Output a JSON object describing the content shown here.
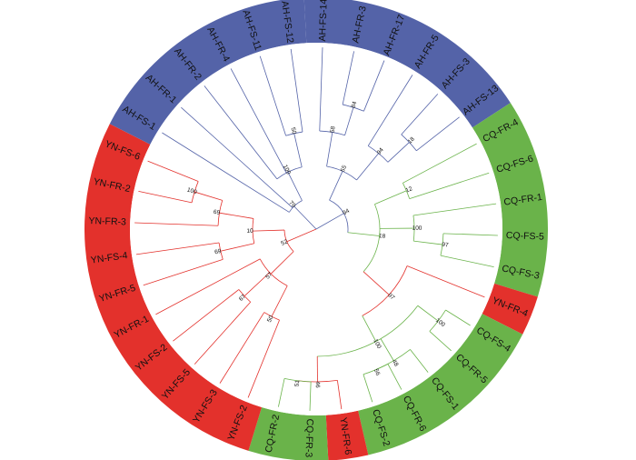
{
  "groups": [
    {
      "name": "AH",
      "color": "#5463a8"
    },
    {
      "name": "CQ",
      "color": "#6ab34a"
    },
    {
      "name": "YN",
      "color": "#e3312c"
    }
  ],
  "leaves": [
    {
      "label": "AH-FS-14",
      "group": "AH"
    },
    {
      "label": "AH-FR-3",
      "group": "AH"
    },
    {
      "label": "AH-FR-17",
      "group": "AH"
    },
    {
      "label": "AH-FR-5",
      "group": "AH"
    },
    {
      "label": "AH-FS-3",
      "group": "AH"
    },
    {
      "label": "AH-FS-13",
      "group": "AH"
    },
    {
      "label": "CQ-FR-4",
      "group": "CQ"
    },
    {
      "label": "CQ-FS-6",
      "group": "CQ"
    },
    {
      "label": "CQ-FR-1",
      "group": "CQ"
    },
    {
      "label": "CQ-FS-5",
      "group": "CQ"
    },
    {
      "label": "CQ-FS-3",
      "group": "CQ"
    },
    {
      "label": "YN-FR-4",
      "group": "YN"
    },
    {
      "label": "CQ-FS-4",
      "group": "CQ"
    },
    {
      "label": "CQ-FR-5",
      "group": "CQ"
    },
    {
      "label": "CQ-FS-1",
      "group": "CQ"
    },
    {
      "label": "CQ-FR-6",
      "group": "CQ"
    },
    {
      "label": "CQ-FS-2",
      "group": "CQ"
    },
    {
      "label": "YN-FR-6",
      "group": "YN"
    },
    {
      "label": "CQ-FR-3",
      "group": "CQ"
    },
    {
      "label": "CQ-FR-2",
      "group": "CQ"
    },
    {
      "label": "YN-FS-2",
      "group": "YN"
    },
    {
      "label": "YN-FS-3",
      "group": "YN"
    },
    {
      "label": "YN-FS-5",
      "group": "YN"
    },
    {
      "label": "YN-FS-2",
      "group": "YN"
    },
    {
      "label": "YN-FR-1",
      "group": "YN"
    },
    {
      "label": "YN-FR-5",
      "group": "YN"
    },
    {
      "label": "YN-FS-4",
      "group": "YN"
    },
    {
      "label": "YN-FR-3",
      "group": "YN"
    },
    {
      "label": "YN-FR-2",
      "group": "YN"
    },
    {
      "label": "YN-FS-6",
      "group": "YN"
    },
    {
      "label": "AH-FS-1",
      "group": "AH"
    },
    {
      "label": "AH-FR-1",
      "group": "AH"
    },
    {
      "label": "AH-FR-2",
      "group": "AH"
    },
    {
      "label": "AH-FR-4",
      "group": "AH"
    },
    {
      "label": "AH-FS-11",
      "group": "AH"
    },
    {
      "label": "AH-FS-12",
      "group": "AH"
    }
  ],
  "bootstrap_values": [
    "94",
    "55",
    "58",
    "84",
    "94",
    "18",
    "18",
    "12",
    "100",
    "97",
    "97",
    "100",
    "100",
    "48",
    "56",
    "46",
    "51",
    "52",
    "57",
    "50",
    "67",
    "10",
    "69",
    "69",
    "100",
    "79",
    "100",
    "50",
    "93",
    "53",
    "100",
    "88",
    "18"
  ]
}
